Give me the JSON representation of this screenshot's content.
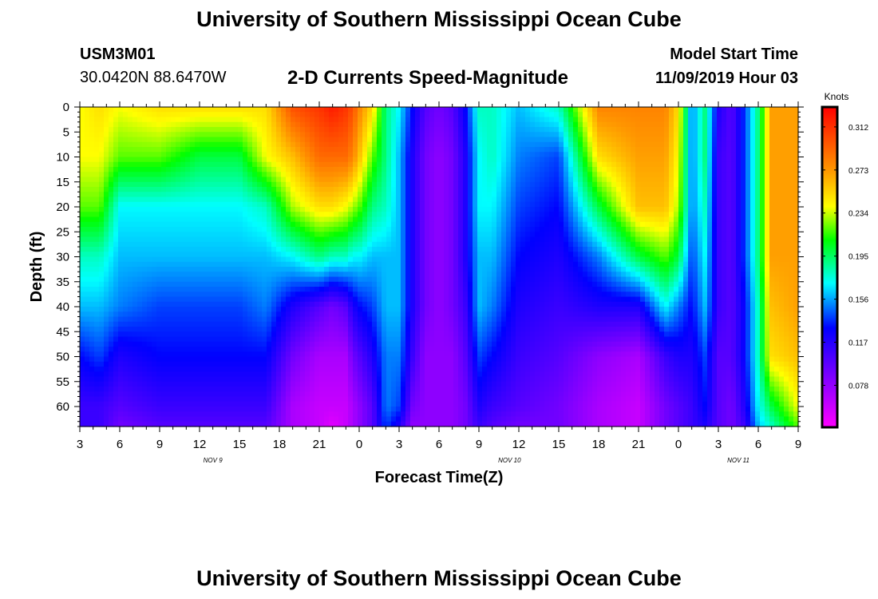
{
  "header": {
    "title": "University of Southern Mississippi Ocean Cube",
    "station_id": "USM3M01",
    "location": "30.0420N 88.6470W",
    "subtitle": "2-D Currents Speed-Magnitude",
    "model_label": "Model Start Time",
    "model_time": "11/09/2019 Hour 03"
  },
  "footer": {
    "title": "University of Southern Mississippi Ocean Cube"
  },
  "chart_data": {
    "type": "heatmap",
    "title": "2-D Currents Speed-Magnitude",
    "xlabel": "Forecast Time(Z)",
    "ylabel": "Depth (ft)",
    "x_range_hours": [
      0,
      54
    ],
    "y_range_ft": [
      0,
      64
    ],
    "x_ticks": [
      {
        "hour": 0,
        "label": "3"
      },
      {
        "hour": 3,
        "label": "6"
      },
      {
        "hour": 6,
        "label": "9"
      },
      {
        "hour": 9,
        "label": "12"
      },
      {
        "hour": 12,
        "label": "15"
      },
      {
        "hour": 15,
        "label": "18"
      },
      {
        "hour": 18,
        "label": "21"
      },
      {
        "hour": 21,
        "label": "0"
      },
      {
        "hour": 24,
        "label": "3"
      },
      {
        "hour": 27,
        "label": "6"
      },
      {
        "hour": 30,
        "label": "9"
      },
      {
        "hour": 33,
        "label": "12"
      },
      {
        "hour": 36,
        "label": "15"
      },
      {
        "hour": 39,
        "label": "18"
      },
      {
        "hour": 42,
        "label": "21"
      },
      {
        "hour": 45,
        "label": "0"
      },
      {
        "hour": 48,
        "label": "3"
      },
      {
        "hour": 51,
        "label": "6"
      },
      {
        "hour": 54,
        "label": "9"
      }
    ],
    "date_labels": [
      {
        "hour": 10,
        "label": "NOV 9"
      },
      {
        "hour": 32.3,
        "label": "NOV 10"
      },
      {
        "hour": 49.5,
        "label": "NOV 11"
      }
    ],
    "y_ticks": [
      0,
      5,
      10,
      15,
      20,
      25,
      30,
      35,
      40,
      45,
      50,
      55,
      60
    ],
    "colorbar": {
      "unit": "Knots",
      "min": 0.04,
      "max": 0.33,
      "ticks": [
        0.078,
        0.117,
        0.156,
        0.195,
        0.234,
        0.273,
        0.312
      ],
      "tick_labels": [
        "0.078",
        "0.117",
        "0.156",
        "0.195",
        "0.234",
        "0.273",
        "0.312"
      ]
    },
    "profiles_hours": [
      0,
      1.5,
      3,
      6,
      9,
      12,
      14,
      16,
      18,
      19,
      20,
      20.5,
      21,
      22,
      23,
      24,
      25,
      26,
      27,
      28,
      29,
      30,
      31,
      33,
      36,
      39,
      42,
      44,
      45,
      46,
      47,
      48,
      49,
      50,
      51,
      52,
      54
    ],
    "profiles_depths_ft": [
      0,
      10,
      20,
      30,
      40,
      50,
      60,
      64
    ],
    "speed_knots": [
      [
        0.24,
        0.24,
        0.22,
        0.18,
        0.16,
        0.13,
        0.11,
        0.11
      ],
      [
        0.25,
        0.24,
        0.22,
        0.18,
        0.16,
        0.14,
        0.11,
        0.11
      ],
      [
        0.24,
        0.22,
        0.17,
        0.16,
        0.15,
        0.12,
        0.1,
        0.09
      ],
      [
        0.25,
        0.22,
        0.17,
        0.16,
        0.14,
        0.13,
        0.11,
        0.1
      ],
      [
        0.25,
        0.2,
        0.17,
        0.16,
        0.14,
        0.13,
        0.11,
        0.1
      ],
      [
        0.25,
        0.2,
        0.17,
        0.16,
        0.14,
        0.13,
        0.11,
        0.1
      ],
      [
        0.25,
        0.24,
        0.18,
        0.16,
        0.15,
        0.13,
        0.11,
        0.1
      ],
      [
        0.3,
        0.26,
        0.23,
        0.17,
        0.12,
        0.09,
        0.07,
        0.07
      ],
      [
        0.31,
        0.29,
        0.25,
        0.19,
        0.1,
        0.07,
        0.06,
        0.06
      ],
      [
        0.32,
        0.29,
        0.25,
        0.18,
        0.09,
        0.07,
        0.06,
        0.05
      ],
      [
        0.31,
        0.29,
        0.24,
        0.18,
        0.1,
        0.07,
        0.06,
        0.06
      ],
      [
        0.3,
        0.28,
        0.23,
        0.17,
        0.12,
        0.09,
        0.07,
        0.07
      ],
      [
        0.28,
        0.26,
        0.22,
        0.17,
        0.13,
        0.1,
        0.08,
        0.08
      ],
      [
        0.25,
        0.22,
        0.19,
        0.16,
        0.14,
        0.12,
        0.1,
        0.1
      ],
      [
        0.19,
        0.19,
        0.18,
        0.16,
        0.16,
        0.15,
        0.15,
        0.14
      ],
      [
        0.17,
        0.16,
        0.16,
        0.16,
        0.16,
        0.15,
        0.14,
        0.12
      ],
      [
        0.13,
        0.12,
        0.12,
        0.12,
        0.12,
        0.11,
        0.09,
        0.08
      ],
      [
        0.1,
        0.09,
        0.09,
        0.09,
        0.09,
        0.08,
        0.08,
        0.08
      ],
      [
        0.09,
        0.08,
        0.08,
        0.08,
        0.08,
        0.08,
        0.08,
        0.08
      ],
      [
        0.1,
        0.09,
        0.09,
        0.09,
        0.09,
        0.08,
        0.08,
        0.08
      ],
      [
        0.13,
        0.12,
        0.12,
        0.12,
        0.11,
        0.1,
        0.09,
        0.09
      ],
      [
        0.18,
        0.17,
        0.17,
        0.16,
        0.16,
        0.14,
        0.12,
        0.11
      ],
      [
        0.18,
        0.18,
        0.17,
        0.16,
        0.15,
        0.13,
        0.11,
        0.1
      ],
      [
        0.16,
        0.15,
        0.14,
        0.13,
        0.12,
        0.11,
        0.1,
        0.09
      ],
      [
        0.18,
        0.14,
        0.13,
        0.12,
        0.11,
        0.1,
        0.09,
        0.09
      ],
      [
        0.28,
        0.25,
        0.2,
        0.15,
        0.12,
        0.08,
        0.07,
        0.07
      ],
      [
        0.28,
        0.27,
        0.26,
        0.2,
        0.12,
        0.07,
        0.06,
        0.06
      ],
      [
        0.28,
        0.27,
        0.26,
        0.22,
        0.17,
        0.11,
        0.09,
        0.09
      ],
      [
        0.25,
        0.24,
        0.23,
        0.2,
        0.15,
        0.12,
        0.1,
        0.1
      ],
      [
        0.15,
        0.15,
        0.15,
        0.14,
        0.13,
        0.12,
        0.11,
        0.11
      ],
      [
        0.19,
        0.19,
        0.18,
        0.17,
        0.16,
        0.14,
        0.13,
        0.12
      ],
      [
        0.12,
        0.11,
        0.11,
        0.11,
        0.11,
        0.1,
        0.1,
        0.1
      ],
      [
        0.1,
        0.1,
        0.1,
        0.1,
        0.1,
        0.1,
        0.09,
        0.09
      ],
      [
        0.14,
        0.14,
        0.14,
        0.14,
        0.13,
        0.13,
        0.12,
        0.11
      ],
      [
        0.19,
        0.19,
        0.19,
        0.19,
        0.18,
        0.18,
        0.17,
        0.16
      ],
      [
        0.27,
        0.27,
        0.27,
        0.27,
        0.26,
        0.25,
        0.2,
        0.18
      ],
      [
        0.27,
        0.27,
        0.27,
        0.27,
        0.27,
        0.26,
        0.24,
        0.22
      ]
    ]
  }
}
